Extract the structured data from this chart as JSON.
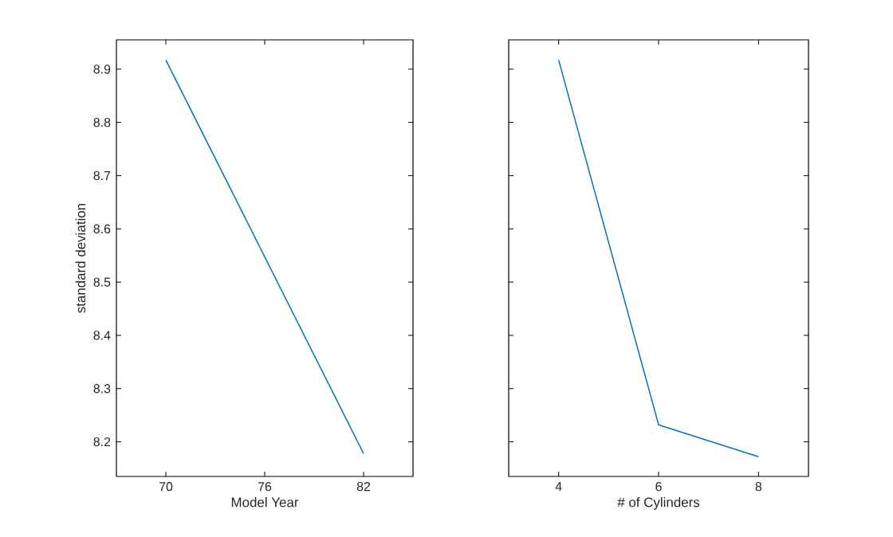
{
  "chart_data": [
    {
      "type": "line",
      "xlabel": "Model Year",
      "ylabel": "standard deviation",
      "x": [
        70,
        82
      ],
      "series": [
        {
          "color": "#0072bd",
          "values": [
            8.917,
            8.178
          ]
        }
      ],
      "xlim": [
        67,
        85
      ],
      "xticks": [
        70,
        76,
        82
      ],
      "ylim": [
        8.135,
        8.955
      ],
      "yticks": [
        8.2,
        8.3,
        8.4,
        8.5,
        8.6,
        8.7,
        8.8,
        8.9
      ]
    },
    {
      "type": "line",
      "xlabel": "# of Cylinders",
      "x": [
        4,
        6,
        8
      ],
      "series": [
        {
          "color": "#0072bd",
          "values": [
            8.917,
            8.232,
            8.172
          ]
        }
      ],
      "xlim": [
        3,
        9
      ],
      "xticks": [
        4,
        6,
        8
      ],
      "ylim": [
        8.135,
        8.955
      ],
      "yticks": [
        8.2,
        8.3,
        8.4,
        8.5,
        8.6,
        8.7,
        8.8,
        8.9
      ],
      "tick_labels": "x"
    }
  ]
}
